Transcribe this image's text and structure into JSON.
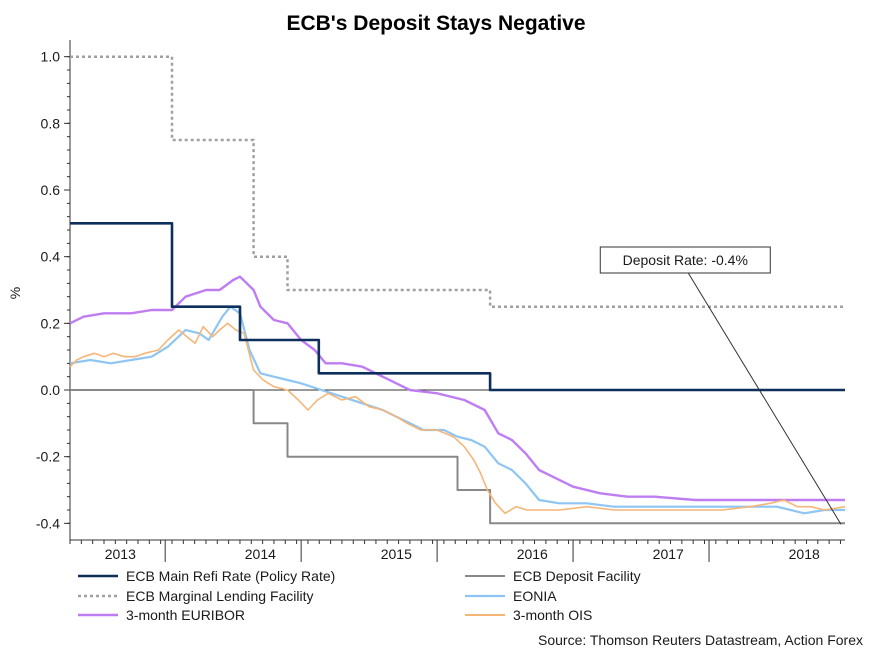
{
  "chart_data": {
    "type": "line",
    "title": "ECB's Deposit Stays Negative",
    "ylabel": "%",
    "xlabel": "",
    "xlim": [
      2012.6,
      2018.3
    ],
    "ylim": [
      -0.45,
      1.05
    ],
    "y_ticks": [
      1.0,
      0.8,
      0.6,
      0.4,
      0.2,
      0.0,
      -0.2,
      -0.4
    ],
    "y_tick_labels": [
      "1.0",
      "0.8",
      "0.6",
      "0.4",
      "0.2",
      "0.0",
      "-0.2",
      "-0.4"
    ],
    "x_tick_labels": [
      {
        "label": "2013",
        "x": 2012.97
      },
      {
        "label": "2014",
        "x": 2014.0
      },
      {
        "label": "2015",
        "x": 2015.0
      },
      {
        "label": "2016",
        "x": 2016.0
      },
      {
        "label": "2017",
        "x": 2017.0
      },
      {
        "label": "2018",
        "x": 2018.0
      }
    ],
    "zero_line": 0.0,
    "annotation": {
      "text": "Deposit Rate: -0.4%",
      "point_x": 2018.3,
      "point_y": -0.4,
      "label_x": 2016.5,
      "label_y": 0.39
    },
    "series": [
      {
        "name": "ECB Main Refi Rate (Policy Rate)",
        "color": "#0d2f5c",
        "dash": "",
        "width": 2.6,
        "points": [
          [
            2012.6,
            0.5
          ],
          [
            2013.35,
            0.5
          ],
          [
            2013.35,
            0.25
          ],
          [
            2013.85,
            0.25
          ],
          [
            2013.85,
            0.15
          ],
          [
            2014.43,
            0.15
          ],
          [
            2014.43,
            0.05
          ],
          [
            2015.69,
            0.05
          ],
          [
            2015.69,
            0.0
          ],
          [
            2018.3,
            0.0
          ]
        ]
      },
      {
        "name": "ECB Marginal Lending Facility",
        "color": "#a0a0a0",
        "dash": "3 3",
        "width": 2.5,
        "points": [
          [
            2012.6,
            1.0
          ],
          [
            2013.35,
            1.0
          ],
          [
            2013.35,
            0.75
          ],
          [
            2013.95,
            0.75
          ],
          [
            2013.95,
            0.4
          ],
          [
            2014.2,
            0.4
          ],
          [
            2014.2,
            0.3
          ],
          [
            2015.69,
            0.3
          ],
          [
            2015.69,
            0.25
          ],
          [
            2018.3,
            0.25
          ]
        ]
      },
      {
        "name": "3-month EURIBOR",
        "color": "#bf7df2",
        "dash": "",
        "width": 2.4,
        "points": [
          [
            2012.6,
            0.2
          ],
          [
            2012.7,
            0.22
          ],
          [
            2012.85,
            0.23
          ],
          [
            2013.05,
            0.23
          ],
          [
            2013.2,
            0.24
          ],
          [
            2013.35,
            0.24
          ],
          [
            2013.45,
            0.28
          ],
          [
            2013.6,
            0.3
          ],
          [
            2013.7,
            0.3
          ],
          [
            2013.8,
            0.33
          ],
          [
            2013.85,
            0.34
          ],
          [
            2013.95,
            0.3
          ],
          [
            2014.0,
            0.25
          ],
          [
            2014.1,
            0.21
          ],
          [
            2014.2,
            0.2
          ],
          [
            2014.3,
            0.15
          ],
          [
            2014.4,
            0.12
          ],
          [
            2014.48,
            0.08
          ],
          [
            2014.6,
            0.08
          ],
          [
            2014.75,
            0.07
          ],
          [
            2014.9,
            0.04
          ],
          [
            2015.0,
            0.02
          ],
          [
            2015.1,
            0.0
          ],
          [
            2015.3,
            -0.01
          ],
          [
            2015.5,
            -0.03
          ],
          [
            2015.65,
            -0.06
          ],
          [
            2015.75,
            -0.13
          ],
          [
            2015.85,
            -0.15
          ],
          [
            2015.95,
            -0.19
          ],
          [
            2016.05,
            -0.24
          ],
          [
            2016.15,
            -0.26
          ],
          [
            2016.3,
            -0.29
          ],
          [
            2016.5,
            -0.31
          ],
          [
            2016.7,
            -0.32
          ],
          [
            2016.9,
            -0.32
          ],
          [
            2017.2,
            -0.33
          ],
          [
            2017.6,
            -0.33
          ],
          [
            2018.0,
            -0.33
          ],
          [
            2018.3,
            -0.33
          ]
        ]
      },
      {
        "name": "ECB Deposit Facility",
        "color": "#888888",
        "dash": "",
        "width": 2.0,
        "points": [
          [
            2012.6,
            0.0
          ],
          [
            2013.95,
            0.0
          ],
          [
            2013.95,
            -0.1
          ],
          [
            2014.2,
            -0.1
          ],
          [
            2014.2,
            -0.2
          ],
          [
            2015.45,
            -0.2
          ],
          [
            2015.45,
            -0.3
          ],
          [
            2015.69,
            -0.3
          ],
          [
            2015.69,
            -0.4
          ],
          [
            2018.3,
            -0.4
          ]
        ]
      },
      {
        "name": "EONIA",
        "color": "#8ec5f2",
        "dash": "",
        "width": 2.2,
        "points": [
          [
            2012.6,
            0.08
          ],
          [
            2012.75,
            0.09
          ],
          [
            2012.9,
            0.08
          ],
          [
            2013.05,
            0.09
          ],
          [
            2013.2,
            0.1
          ],
          [
            2013.32,
            0.13
          ],
          [
            2013.45,
            0.18
          ],
          [
            2013.55,
            0.17
          ],
          [
            2013.62,
            0.15
          ],
          [
            2013.72,
            0.22
          ],
          [
            2013.78,
            0.25
          ],
          [
            2013.85,
            0.23
          ],
          [
            2013.92,
            0.12
          ],
          [
            2014.0,
            0.05
          ],
          [
            2014.1,
            0.04
          ],
          [
            2014.2,
            0.03
          ],
          [
            2014.3,
            0.02
          ],
          [
            2014.45,
            0.0
          ],
          [
            2014.6,
            -0.02
          ],
          [
            2014.75,
            -0.04
          ],
          [
            2014.9,
            -0.06
          ],
          [
            2015.0,
            -0.08
          ],
          [
            2015.1,
            -0.1
          ],
          [
            2015.2,
            -0.12
          ],
          [
            2015.35,
            -0.12
          ],
          [
            2015.45,
            -0.14
          ],
          [
            2015.55,
            -0.15
          ],
          [
            2015.65,
            -0.17
          ],
          [
            2015.75,
            -0.22
          ],
          [
            2015.85,
            -0.24
          ],
          [
            2015.95,
            -0.28
          ],
          [
            2016.05,
            -0.33
          ],
          [
            2016.2,
            -0.34
          ],
          [
            2016.4,
            -0.34
          ],
          [
            2016.6,
            -0.35
          ],
          [
            2016.8,
            -0.35
          ],
          [
            2017.0,
            -0.35
          ],
          [
            2017.3,
            -0.35
          ],
          [
            2017.6,
            -0.35
          ],
          [
            2017.8,
            -0.35
          ],
          [
            2018.0,
            -0.37
          ],
          [
            2018.15,
            -0.36
          ],
          [
            2018.3,
            -0.36
          ]
        ]
      },
      {
        "name": "3-month OIS",
        "color": "#f5b678",
        "dash": "",
        "width": 1.6,
        "points": [
          [
            2012.6,
            0.07
          ],
          [
            2012.65,
            0.09
          ],
          [
            2012.7,
            0.1
          ],
          [
            2012.78,
            0.11
          ],
          [
            2012.85,
            0.1
          ],
          [
            2012.92,
            0.11
          ],
          [
            2013.0,
            0.1
          ],
          [
            2013.08,
            0.1
          ],
          [
            2013.15,
            0.11
          ],
          [
            2013.25,
            0.12
          ],
          [
            2013.32,
            0.15
          ],
          [
            2013.4,
            0.18
          ],
          [
            2013.46,
            0.16
          ],
          [
            2013.52,
            0.14
          ],
          [
            2013.58,
            0.19
          ],
          [
            2013.65,
            0.16
          ],
          [
            2013.7,
            0.18
          ],
          [
            2013.76,
            0.2
          ],
          [
            2013.82,
            0.18
          ],
          [
            2013.88,
            0.17
          ],
          [
            2013.95,
            0.06
          ],
          [
            2014.02,
            0.03
          ],
          [
            2014.1,
            0.01
          ],
          [
            2014.2,
            0.0
          ],
          [
            2014.28,
            -0.03
          ],
          [
            2014.35,
            -0.06
          ],
          [
            2014.42,
            -0.03
          ],
          [
            2014.5,
            -0.01
          ],
          [
            2014.6,
            -0.03
          ],
          [
            2014.7,
            -0.02
          ],
          [
            2014.8,
            -0.05
          ],
          [
            2014.9,
            -0.06
          ],
          [
            2015.0,
            -0.08
          ],
          [
            2015.08,
            -0.1
          ],
          [
            2015.18,
            -0.12
          ],
          [
            2015.3,
            -0.12
          ],
          [
            2015.42,
            -0.14
          ],
          [
            2015.5,
            -0.17
          ],
          [
            2015.57,
            -0.21
          ],
          [
            2015.62,
            -0.25
          ],
          [
            2015.67,
            -0.3
          ],
          [
            2015.73,
            -0.34
          ],
          [
            2015.8,
            -0.37
          ],
          [
            2015.88,
            -0.35
          ],
          [
            2015.96,
            -0.36
          ],
          [
            2016.05,
            -0.36
          ],
          [
            2016.2,
            -0.36
          ],
          [
            2016.4,
            -0.35
          ],
          [
            2016.6,
            -0.36
          ],
          [
            2016.8,
            -0.36
          ],
          [
            2017.0,
            -0.36
          ],
          [
            2017.2,
            -0.36
          ],
          [
            2017.4,
            -0.36
          ],
          [
            2017.6,
            -0.35
          ],
          [
            2017.75,
            -0.34
          ],
          [
            2017.85,
            -0.33
          ],
          [
            2017.95,
            -0.35
          ],
          [
            2018.05,
            -0.35
          ],
          [
            2018.15,
            -0.36
          ],
          [
            2018.3,
            -0.35
          ]
        ]
      }
    ],
    "legend": {
      "placement": "bottom",
      "items": [
        {
          "series": "ECB Main Refi Rate (Policy Rate)",
          "label": "ECB Main Refi Rate (Policy Rate)",
          "column": 0
        },
        {
          "series": "ECB Marginal Lending Facility",
          "label": "ECB Marginal Lending Facility",
          "column": 0
        },
        {
          "series": "3-month EURIBOR",
          "label": "3-month EURIBOR",
          "column": 0
        },
        {
          "series": "ECB Deposit Facility",
          "label": "ECB Deposit Facility",
          "column": 1
        },
        {
          "series": "EONIA",
          "label": "EONIA",
          "column": 1
        },
        {
          "series": "3-month OIS",
          "label": "3-month OIS",
          "column": 1
        }
      ]
    },
    "source": "Source: Thomson Reuters Datastream, Action Forex"
  }
}
